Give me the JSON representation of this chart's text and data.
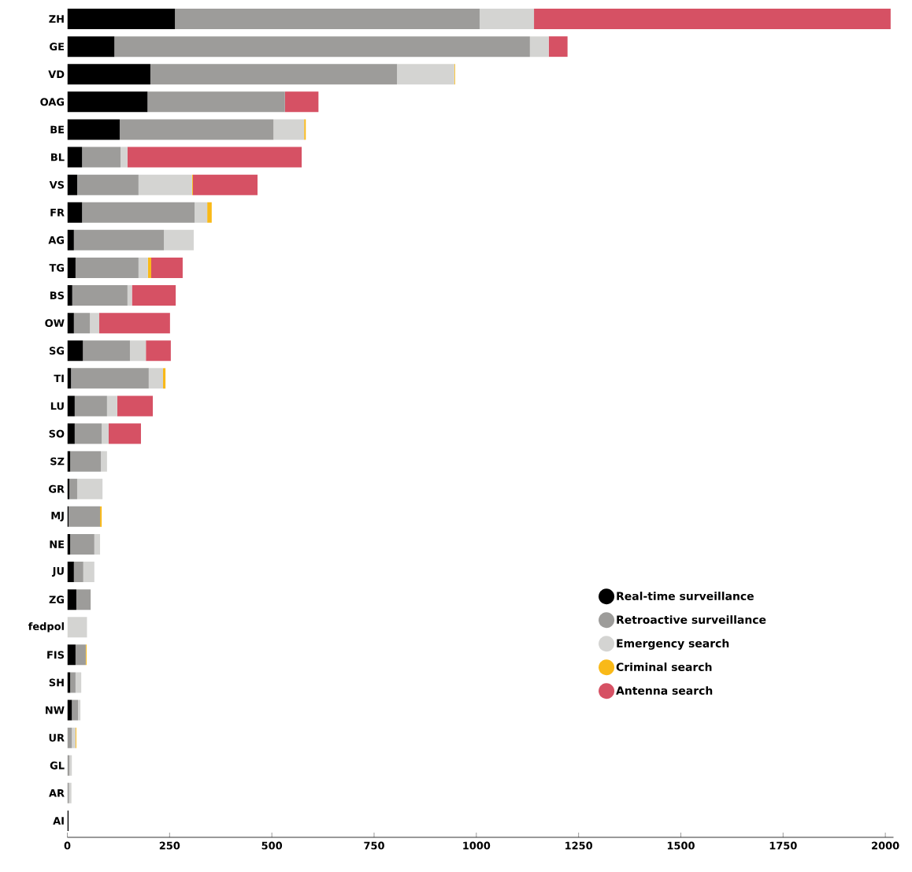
{
  "chart_data": {
    "type": "bar",
    "orientation": "horizontal",
    "stacked": true,
    "categories": [
      "ZH",
      "GE",
      "VD",
      "OAG",
      "BE",
      "BL",
      "VS",
      "FR",
      "AG",
      "TG",
      "BS",
      "OW",
      "SG",
      "TI",
      "LU",
      "SO",
      "SZ",
      "GR",
      "MJ",
      "NE",
      "JU",
      "ZG",
      "fedpol",
      "FIS",
      "SH",
      "NW",
      "UR",
      "GL",
      "AR",
      "AI"
    ],
    "series": [
      {
        "name": "Real-time surveillance",
        "color": "#000000",
        "values": [
          263,
          115,
          203,
          196,
          128,
          36,
          24,
          36,
          16,
          20,
          12,
          16,
          38,
          9,
          18,
          18,
          7,
          5,
          3,
          7,
          16,
          22,
          0,
          20,
          7,
          11,
          0,
          0,
          null,
          3
        ]
      },
      {
        "name": "Retroactive surveillance",
        "color": "#9d9c9a",
        "values": [
          745,
          1016,
          603,
          336,
          376,
          94,
          150,
          275,
          220,
          154,
          135,
          39,
          115,
          190,
          79,
          66,
          75,
          19,
          77,
          59,
          23,
          35,
          null,
          25,
          13,
          15,
          11,
          5,
          4,
          0
        ]
      },
      {
        "name": "Emergency search",
        "color": "#d4d4d2",
        "values": [
          133,
          46,
          140,
          0,
          75,
          17,
          131,
          31,
          73,
          23,
          11,
          23,
          39,
          35,
          25,
          17,
          15,
          62,
          0,
          14,
          27,
          null,
          48,
          0,
          14,
          6,
          9,
          6,
          6,
          0
        ]
      },
      {
        "name": "Criminal search",
        "color": "#f9b918",
        "values": [
          0,
          0,
          2,
          0,
          4,
          0,
          2,
          11,
          null,
          8,
          0,
          0,
          0,
          6,
          0,
          0,
          0,
          0,
          4,
          0,
          0,
          0,
          0,
          2,
          0,
          0,
          2,
          0,
          0,
          0
        ]
      },
      {
        "name": "Antenna search",
        "color": "#d65164",
        "values": [
          872,
          46,
          0,
          82,
          0,
          426,
          158,
          0,
          0,
          77,
          107,
          173,
          61,
          0,
          87,
          79,
          0,
          0,
          0,
          0,
          0,
          0,
          0,
          0,
          0,
          0,
          0,
          0,
          0,
          0
        ]
      }
    ],
    "xlim": [
      0,
      2020
    ],
    "xticks": [
      0,
      250,
      500,
      750,
      1000,
      1250,
      1500,
      1750,
      2000
    ],
    "grid": false,
    "legend": "bottom right"
  }
}
